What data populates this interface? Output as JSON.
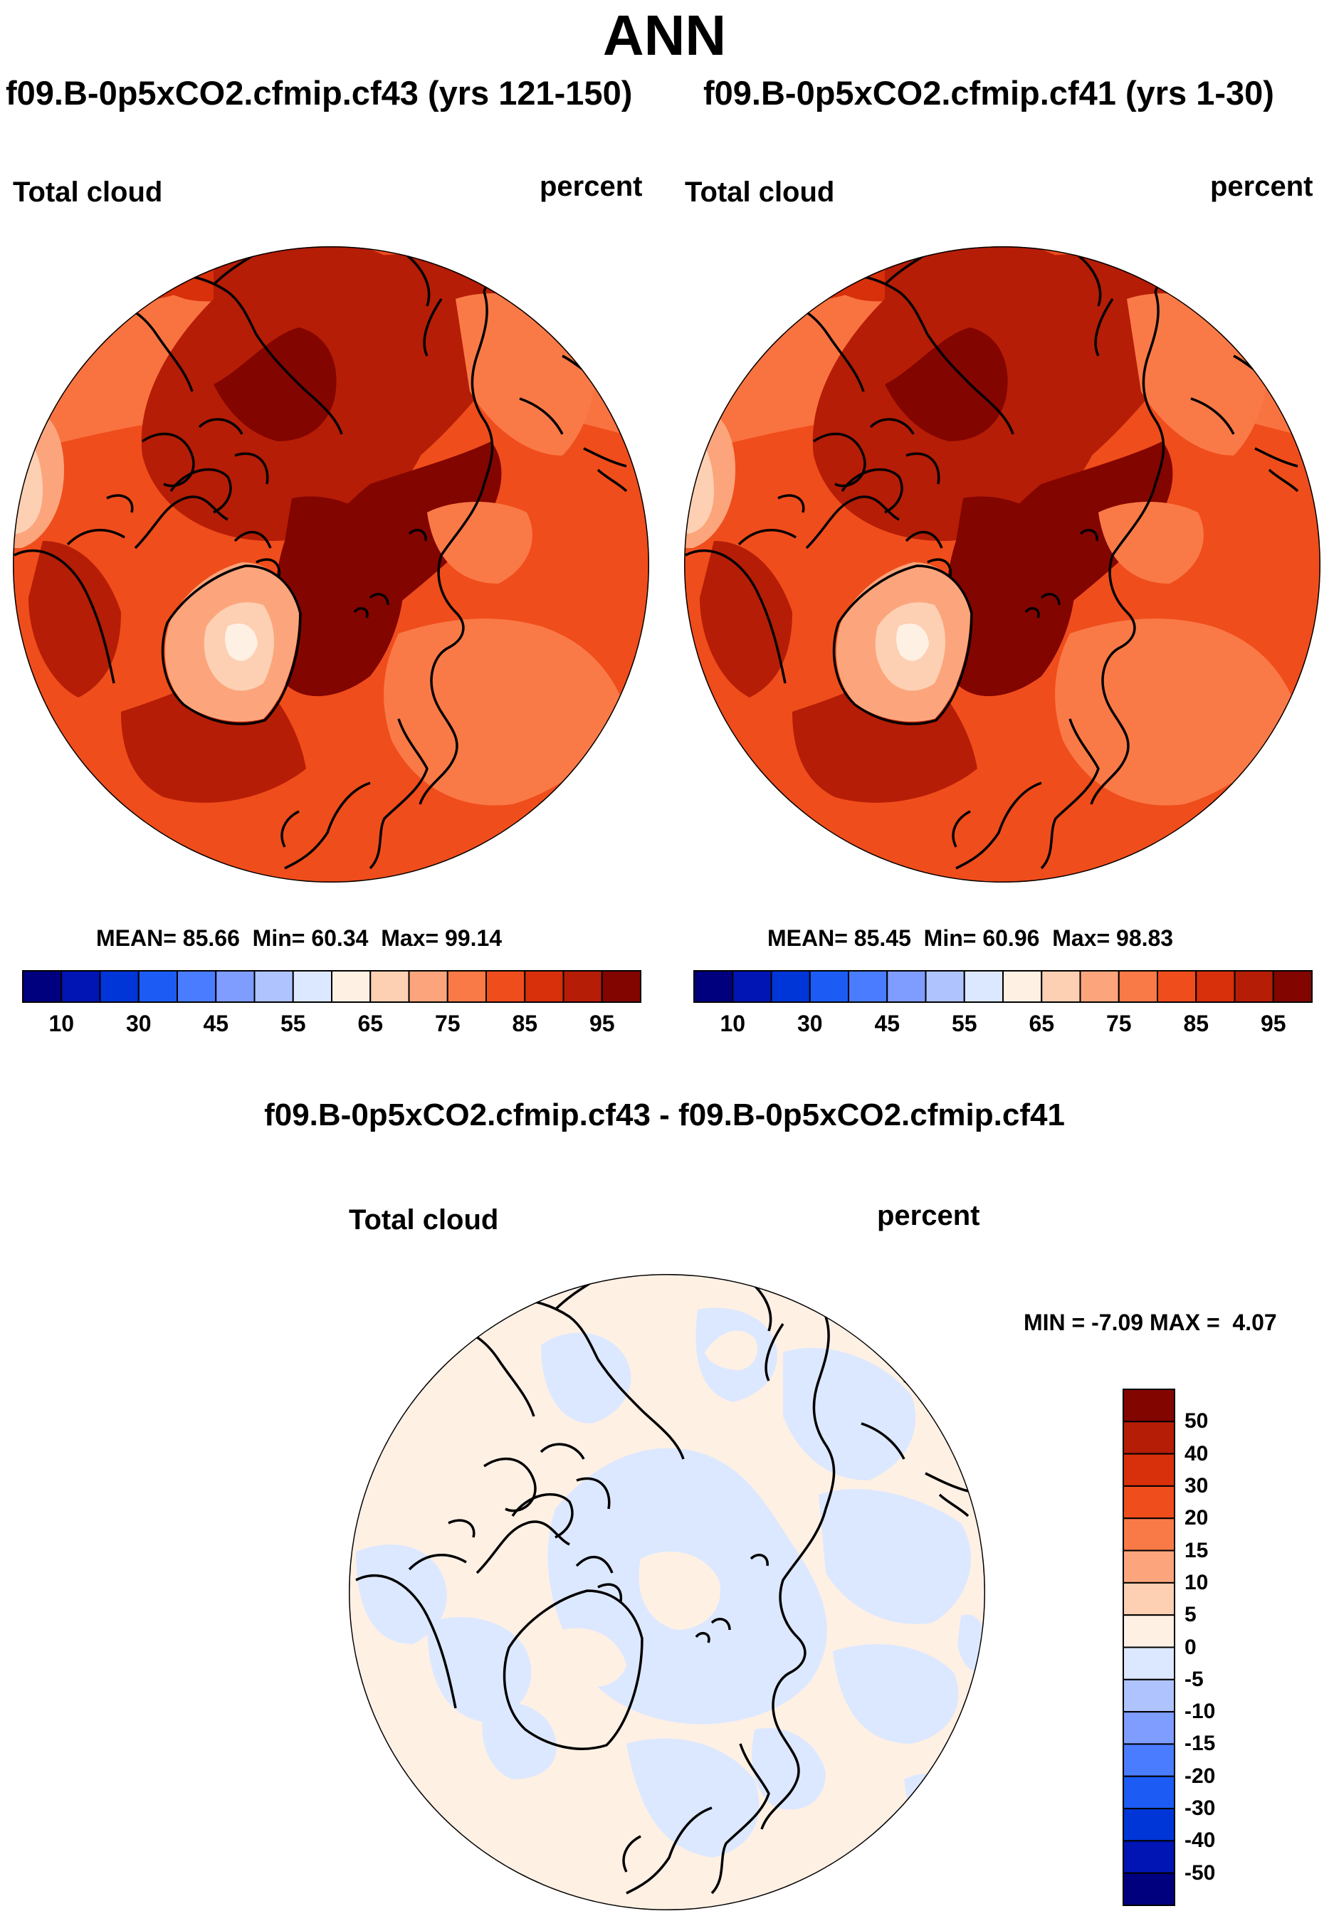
{
  "season": "ANN",
  "panels": [
    {
      "case_title": "f09.B-0p5xCO2.cfmip.cf43 (yrs 121-150)",
      "variable": "Total cloud",
      "units": "percent",
      "stats": {
        "mean_label": "MEAN=",
        "mean": "85.66",
        "min_label": "Min=",
        "min": "60.34",
        "max_label": "Max=",
        "max": "99.14"
      }
    },
    {
      "case_title": "f09.B-0p5xCO2.cfmip.cf41 (yrs 1-30)",
      "variable": "Total cloud",
      "units": "percent",
      "stats": {
        "mean_label": "MEAN=",
        "mean": "85.45",
        "min_label": "Min=",
        "min": "60.96",
        "max_label": "Max=",
        "max": "98.83"
      }
    }
  ],
  "difference": {
    "title": "f09.B-0p5xCO2.cfmip.cf43 - f09.B-0p5xCO2.cfmip.cf41",
    "variable": "Total cloud",
    "units": "percent",
    "min_label": "MIN =",
    "min": "-7.09",
    "max_label": "MAX =",
    "max": "4.07"
  },
  "chart_data": [
    {
      "type": "heatmap",
      "projection": "north polar stereographic",
      "title": "f09.B-0p5xCO2.cfmip.cf43 (yrs 121-150)",
      "field": "Total cloud",
      "units": "percent",
      "mean": 85.66,
      "min": 60.34,
      "max": 99.14,
      "colorbar": {
        "levels": [
          10,
          20,
          30,
          40,
          45,
          50,
          55,
          60,
          65,
          70,
          75,
          80,
          85,
          90,
          95
        ],
        "tick_labels": [
          "10",
          "30",
          "45",
          "55",
          "65",
          "75",
          "85",
          "95"
        ],
        "colors": [
          "#00007f",
          "#0015b4",
          "#0036d8",
          "#1c5cf5",
          "#4a7cff",
          "#7f9cff",
          "#afc4ff",
          "#dce8ff",
          "#fff0e4",
          "#fdd0b3",
          "#fca57c",
          "#fa7a47",
          "#f04d1c",
          "#d8300a",
          "#b51d06",
          "#830500"
        ]
      }
    },
    {
      "type": "heatmap",
      "projection": "north polar stereographic",
      "title": "f09.B-0p5xCO2.cfmip.cf41 (yrs 1-30)",
      "field": "Total cloud",
      "units": "percent",
      "mean": 85.45,
      "min": 60.96,
      "max": 98.83,
      "colorbar": {
        "levels": [
          10,
          20,
          30,
          40,
          45,
          50,
          55,
          60,
          65,
          70,
          75,
          80,
          85,
          90,
          95
        ],
        "tick_labels": [
          "10",
          "30",
          "45",
          "55",
          "65",
          "75",
          "85",
          "95"
        ],
        "colors": [
          "#00007f",
          "#0015b4",
          "#0036d8",
          "#1c5cf5",
          "#4a7cff",
          "#7f9cff",
          "#afc4ff",
          "#dce8ff",
          "#fff0e4",
          "#fdd0b3",
          "#fca57c",
          "#fa7a47",
          "#f04d1c",
          "#d8300a",
          "#b51d06",
          "#830500"
        ]
      }
    },
    {
      "type": "heatmap",
      "projection": "north polar stereographic",
      "title": "f09.B-0p5xCO2.cfmip.cf43 - f09.B-0p5xCO2.cfmip.cf41",
      "field": "Total cloud",
      "units": "percent",
      "min": -7.09,
      "max": 4.07,
      "colorbar": {
        "orientation": "vertical",
        "levels": [
          50,
          40,
          30,
          20,
          15,
          10,
          5,
          0,
          -5,
          -10,
          -15,
          -20,
          -30,
          -40,
          -50
        ],
        "tick_labels": [
          "50",
          "40",
          "30",
          "20",
          "15",
          "10",
          "5",
          "0",
          "-5",
          "-10",
          "-15",
          "-20",
          "-30",
          "-40",
          "-50"
        ],
        "colors": [
          "#830500",
          "#b51d06",
          "#d8300a",
          "#f04d1c",
          "#fa7a47",
          "#fca57c",
          "#fdd0b3",
          "#fff0e4",
          "#dce8ff",
          "#afc4ff",
          "#7f9cff",
          "#4a7cff",
          "#1c5cf5",
          "#0036d8",
          "#0015b4",
          "#00007f"
        ]
      }
    }
  ]
}
